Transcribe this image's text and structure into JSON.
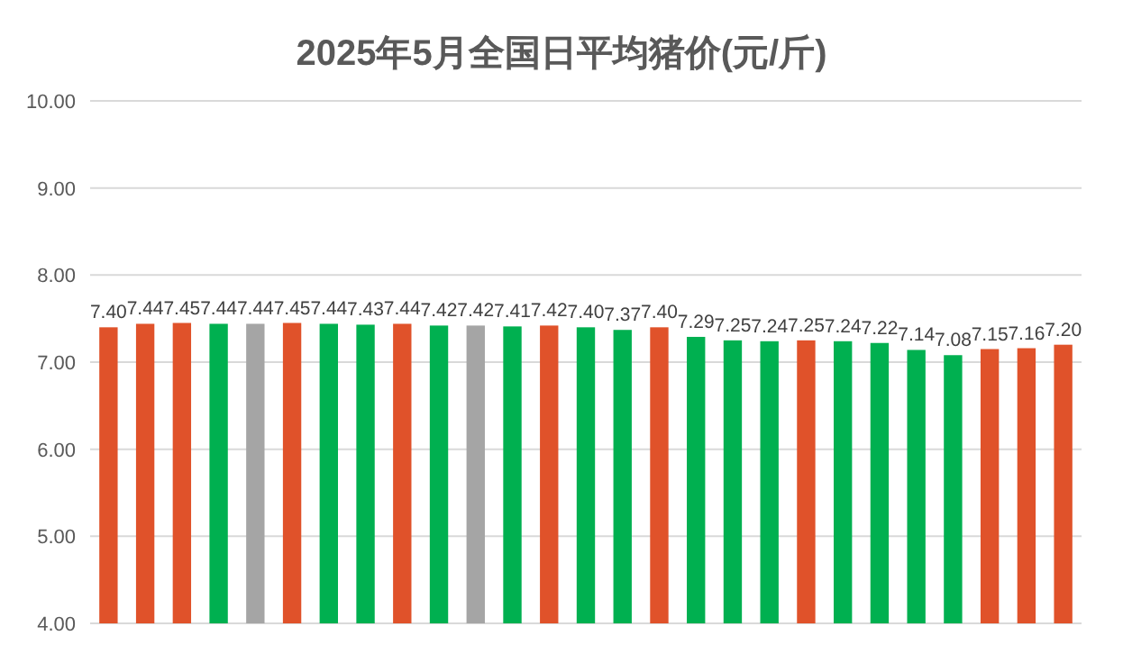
{
  "chart_data": {
    "type": "bar",
    "title": "2025年5月全国日平均猪价(元/斤)",
    "categories": [
      null,
      null,
      null,
      null,
      null,
      null,
      null,
      null,
      null,
      null,
      null,
      null,
      null,
      null,
      null,
      null,
      null,
      null,
      null,
      null,
      null,
      null,
      null,
      null,
      null,
      null,
      null
    ],
    "values": [
      7.4,
      7.44,
      7.45,
      7.44,
      7.44,
      7.45,
      7.44,
      7.43,
      7.44,
      7.42,
      7.42,
      7.41,
      7.42,
      7.4,
      7.37,
      7.4,
      7.29,
      7.25,
      7.24,
      7.25,
      7.24,
      7.22,
      7.14,
      7.08,
      7.15,
      7.16,
      7.2
    ],
    "value_labels": [
      "7.40",
      "7.44",
      "7.45",
      "7.44",
      "7.44",
      "7.45",
      "7.44",
      "7.43",
      "7.44",
      "7.42",
      "7.42",
      "7.41",
      "7.42",
      "7.40",
      "7.37",
      "7.40",
      "7.29",
      "7.25",
      "7.24",
      "7.25",
      "7.24",
      "7.22",
      "7.14",
      "7.08",
      "7.15",
      "7.16",
      "7.20"
    ],
    "colors": [
      "#e0522a",
      "#e0522a",
      "#e0522a",
      "#00b050",
      "#a5a5a5",
      "#e0522a",
      "#00b050",
      "#00b050",
      "#e0522a",
      "#00b050",
      "#a5a5a5",
      "#00b050",
      "#e0522a",
      "#00b050",
      "#00b050",
      "#e0522a",
      "#00b050",
      "#00b050",
      "#00b050",
      "#e0522a",
      "#00b050",
      "#00b050",
      "#00b050",
      "#00b050",
      "#e0522a",
      "#e0522a",
      "#e0522a"
    ],
    "ylim": [
      4,
      10
    ],
    "yticks": [
      {
        "value": 4,
        "label": "4.00"
      },
      {
        "value": 5,
        "label": "5.00"
      },
      {
        "value": 6,
        "label": "6.00"
      },
      {
        "value": 7,
        "label": "7.00"
      },
      {
        "value": 8,
        "label": "8.00"
      },
      {
        "value": 9,
        "label": "9.00"
      },
      {
        "value": 10,
        "label": "10.00"
      }
    ],
    "grid": "y"
  }
}
